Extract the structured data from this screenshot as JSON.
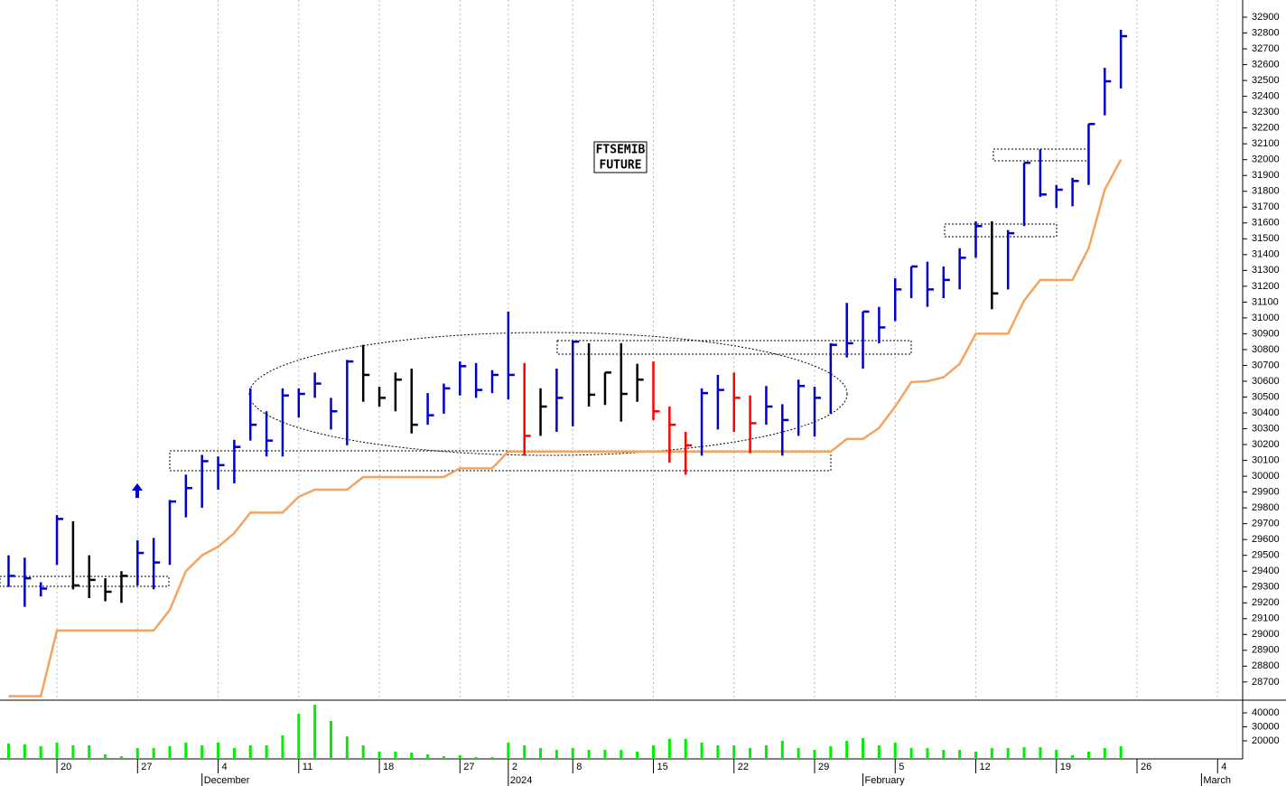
{
  "chart_data": [
    {
      "type": "ohlc",
      "title_lines": [
        "FTSEMIB",
        "FUTURE"
      ],
      "high": [
        29500,
        29485,
        29330,
        29755,
        29715,
        29500,
        29355,
        29400,
        29595,
        29610,
        29850,
        30010,
        30135,
        30125,
        30230,
        30555,
        30410,
        30555,
        30555,
        30655,
        30495,
        30735,
        30830,
        30565,
        30655,
        30680,
        30525,
        30585,
        30725,
        30715,
        30670,
        31040,
        30715,
        30555,
        30680,
        30855,
        30840,
        30655,
        30840,
        30710,
        30725,
        30440,
        30280,
        30555,
        30640,
        30655,
        30510,
        30570,
        30455,
        30610,
        30565,
        30840,
        31095,
        31040,
        31070,
        31250,
        31325,
        31355,
        31325,
        31440,
        31610,
        31610,
        31555,
        31980,
        32065,
        31840,
        31885,
        32225,
        32580,
        32820
      ],
      "low": [
        29300,
        29175,
        29240,
        29440,
        29285,
        29230,
        29210,
        29200,
        29310,
        29285,
        29440,
        29740,
        29800,
        29915,
        29955,
        30225,
        30125,
        30125,
        30370,
        30495,
        30295,
        30195,
        30470,
        30440,
        30410,
        30270,
        30325,
        30395,
        30510,
        30495,
        30525,
        30485,
        30130,
        30255,
        30280,
        30315,
        30440,
        30450,
        30345,
        30470,
        30355,
        30085,
        30010,
        30130,
        30295,
        30280,
        30145,
        30325,
        30130,
        30255,
        30250,
        30395,
        30750,
        30680,
        30840,
        30980,
        31125,
        31070,
        31125,
        31180,
        31380,
        31055,
        31180,
        31580,
        31765,
        31695,
        31705,
        31840,
        32280,
        32450
      ],
      "close": [
        29370,
        29355,
        29290,
        29730,
        29310,
        29345,
        29270,
        29370,
        29515,
        29455,
        29840,
        29925,
        30095,
        30070,
        30185,
        30325,
        30225,
        30510,
        30520,
        30585,
        30410,
        30725,
        30640,
        30495,
        30610,
        30325,
        30385,
        30555,
        30695,
        30545,
        30640,
        30640,
        30255,
        30440,
        30495,
        30850,
        30515,
        30655,
        30520,
        30610,
        30410,
        30325,
        30195,
        30525,
        30545,
        30495,
        30335,
        30440,
        30355,
        30570,
        30495,
        30830,
        30840,
        31040,
        30940,
        31180,
        31325,
        31180,
        31240,
        31380,
        31580,
        31155,
        31535,
        31980,
        31780,
        31810,
        31865,
        32225,
        32495,
        32780
      ],
      "bar_colors": [
        "#0000cc",
        "#0000cc",
        "#0000cc",
        "#0000cc",
        "#000000",
        "#000000",
        "#000000",
        "#000000",
        "#0000cc",
        "#0000cc",
        "#0000cc",
        "#0000cc",
        "#0000cc",
        "#0000cc",
        "#0000cc",
        "#0000cc",
        "#0000cc",
        "#0000cc",
        "#0000cc",
        "#0000cc",
        "#0000cc",
        "#0000cc",
        "#000000",
        "#000000",
        "#000000",
        "#000000",
        "#0000cc",
        "#0000cc",
        "#0000cc",
        "#0000cc",
        "#0000cc",
        "#0000cc",
        "#ff0000",
        "#000000",
        "#0000cc",
        "#0000cc",
        "#000000",
        "#000000",
        "#000000",
        "#000000",
        "#ff0000",
        "#ff0000",
        "#ff0000",
        "#0000cc",
        "#0000cc",
        "#ff0000",
        "#ff0000",
        "#0000cc",
        "#0000cc",
        "#0000cc",
        "#0000cc",
        "#0000cc",
        "#0000cc",
        "#0000cc",
        "#0000cc",
        "#0000cc",
        "#0000cc",
        "#0000cc",
        "#0000cc",
        "#0000cc",
        "#0000cc",
        "#000000",
        "#0000cc",
        "#0000cc",
        "#0000cc",
        "#0000cc",
        "#0000cc",
        "#0000cc",
        "#0000cc",
        "#0000cc"
      ],
      "line": {
        "color": "#f4a460",
        "values": [
          28610,
          28610,
          28610,
          29025,
          29025,
          29025,
          29025,
          29025,
          29025,
          29025,
          29155,
          29400,
          29500,
          29555,
          29640,
          29770,
          29770,
          29770,
          29870,
          29915,
          29915,
          29915,
          29995,
          29995,
          29995,
          29995,
          29995,
          29995,
          30050,
          30050,
          30050,
          30155,
          30155,
          30155,
          30155,
          30155,
          30155,
          30155,
          30155,
          30155,
          30155,
          30155,
          30155,
          30155,
          30155,
          30155,
          30155,
          30155,
          30155,
          30155,
          30155,
          30155,
          30235,
          30235,
          30305,
          30440,
          30595,
          30600,
          30625,
          30710,
          30900,
          30900,
          30900,
          31110,
          31240,
          31240,
          31240,
          31440,
          31810,
          32000
        ]
      },
      "ylim": [
        28585,
        32980
      ],
      "yticks": [
        28700,
        28800,
        28900,
        29000,
        29100,
        29200,
        29300,
        29400,
        29500,
        29600,
        29700,
        29800,
        29900,
        30000,
        30100,
        30200,
        30300,
        30400,
        30500,
        30600,
        30700,
        30800,
        30900,
        31000,
        31100,
        31200,
        31300,
        31400,
        31500,
        31600,
        31700,
        31800,
        31900,
        32000,
        32100,
        32200,
        32300,
        32400,
        32500,
        32600,
        32700,
        32800,
        32900
      ],
      "grid": true
    },
    {
      "type": "bar",
      "color": "#00ee00",
      "values": [
        18100,
        17400,
        16100,
        18700,
        16800,
        16800,
        10300,
        9000,
        14800,
        14800,
        16100,
        18700,
        16800,
        18700,
        14800,
        16800,
        16800,
        23900,
        39400,
        45800,
        34200,
        23200,
        16800,
        12300,
        12300,
        11600,
        10300,
        9000,
        9700,
        8400,
        8400,
        18700,
        16800,
        14800,
        13500,
        14800,
        13500,
        13500,
        13500,
        12300,
        16800,
        21300,
        21300,
        18700,
        16800,
        16800,
        14800,
        16800,
        20000,
        14800,
        13500,
        16100,
        20000,
        21900,
        16800,
        18700,
        14800,
        14800,
        13500,
        13500,
        12300,
        14800,
        14800,
        15400,
        15400,
        13500,
        9700,
        12300,
        14800,
        16100
      ],
      "ylim": [
        7100,
        48400
      ],
      "yticks": [
        20000,
        30000,
        40000
      ],
      "xticks": [
        {
          "value": 3,
          "label": "20"
        },
        {
          "value": 8,
          "label": "27"
        },
        {
          "value": 13,
          "label": "4"
        },
        {
          "value": 18,
          "label": "11"
        },
        {
          "value": 23,
          "label": "18"
        },
        {
          "value": 28,
          "label": "27"
        },
        {
          "value": 31,
          "label": "2"
        },
        {
          "value": 35,
          "label": "8"
        },
        {
          "value": 40,
          "label": "15"
        },
        {
          "value": 45,
          "label": "22"
        },
        {
          "value": 50,
          "label": "29"
        },
        {
          "value": 55,
          "label": "5"
        },
        {
          "value": 60,
          "label": "12"
        },
        {
          "value": 65,
          "label": "19"
        },
        {
          "value": 70,
          "label": "26"
        },
        {
          "value": 75,
          "label": "4"
        }
      ],
      "month_ticks": [
        {
          "value": 12,
          "label": "December"
        },
        {
          "value": 31,
          "label": "2024"
        },
        {
          "value": 53,
          "label": "February"
        },
        {
          "value": 74,
          "label": "March"
        }
      ]
    }
  ]
}
